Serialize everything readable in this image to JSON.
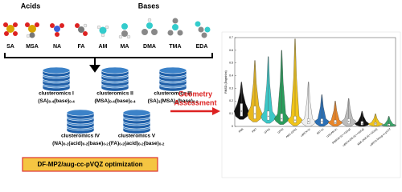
{
  "header": {
    "acids": "Acids",
    "bases": "Bases"
  },
  "molecules": [
    "SA",
    "MSA",
    "NA",
    "FA",
    "AM",
    "MA",
    "DMA",
    "TMA",
    "EDA"
  ],
  "databases": [
    {
      "name": "clusteromics I",
      "formula": [
        {
          "t": "(SA)"
        },
        {
          "s": "0-4"
        },
        {
          "t": "(base)"
        },
        {
          "s": "0-4"
        }
      ]
    },
    {
      "name": "clusteromics II",
      "formula": [
        {
          "t": "(MSA)"
        },
        {
          "s": "0-4"
        },
        {
          "t": "(base)"
        },
        {
          "s": "0-4"
        }
      ]
    },
    {
      "name": "clusteromics III",
      "formula": [
        {
          "t": "(SA)"
        },
        {
          "s": "1"
        },
        {
          "t": "(MSA)"
        },
        {
          "s": "1"
        },
        {
          "t": "(base)"
        },
        {
          "s": "0-2"
        }
      ]
    },
    {
      "name": "clusteromics IV",
      "formula": [
        {
          "t": "(NA)"
        },
        {
          "s": "0-2"
        },
        {
          "t": "(acid)"
        },
        {
          "s": "0-2"
        },
        {
          "t": "(base)"
        },
        {
          "s": "0-2"
        }
      ]
    },
    {
      "name": "clusteromics V",
      "formula": [
        {
          "t": "(FA)"
        },
        {
          "s": "0-2"
        },
        {
          "t": "(acid)"
        },
        {
          "s": "0-2"
        },
        {
          "t": "(base)"
        },
        {
          "s": "0-2"
        }
      ]
    }
  ],
  "method": "DF-MP2/aug-cc-pVQZ optimization",
  "assessment": [
    "Geometry",
    "Assessment"
  ],
  "chart_data": {
    "type": "violin",
    "ylabel": "RMSD (Ångström)",
    "categories": [
      "PM6",
      "PM7",
      "GFN1",
      "GFN2",
      "AMC-GFN1",
      "ωB97X-3c",
      "B97-3c",
      "r2SCAN-3c",
      "PW91/6-31++G(d,p)",
      "ωB97X-D/6-31++G(d,p)",
      "M06-2X/6-31++G(d,p)",
      "ωB97X-D/aug-cc-pVTZ"
    ],
    "colors": [
      "#111111",
      "#e8b820",
      "#3cc8c8",
      "#2a9d5c",
      "#f0c419",
      "#eeeeee",
      "#2a6fb5",
      "#e8862a",
      "#bbbbbb",
      "#111111",
      "#f0c419",
      "#3aa66a"
    ],
    "median": [
      0.12,
      0.1,
      0.08,
      0.06,
      0.05,
      0.04,
      0.04,
      0.03,
      0.04,
      0.02,
      0.02,
      0.01
    ],
    "q1": [
      0.08,
      0.06,
      0.05,
      0.04,
      0.03,
      0.02,
      0.02,
      0.02,
      0.02,
      0.01,
      0.01,
      0.005
    ],
    "q3": [
      0.18,
      0.16,
      0.12,
      0.1,
      0.08,
      0.06,
      0.06,
      0.05,
      0.06,
      0.04,
      0.03,
      0.02
    ],
    "max": [
      0.35,
      0.52,
      0.55,
      0.6,
      0.69,
      0.35,
      0.25,
      0.2,
      0.22,
      0.12,
      0.1,
      0.08
    ],
    "ylim": [
      0,
      0.7
    ],
    "yticks": [
      0,
      0.1,
      0.2,
      0.3,
      0.4,
      0.5,
      0.6,
      0.7
    ]
  }
}
